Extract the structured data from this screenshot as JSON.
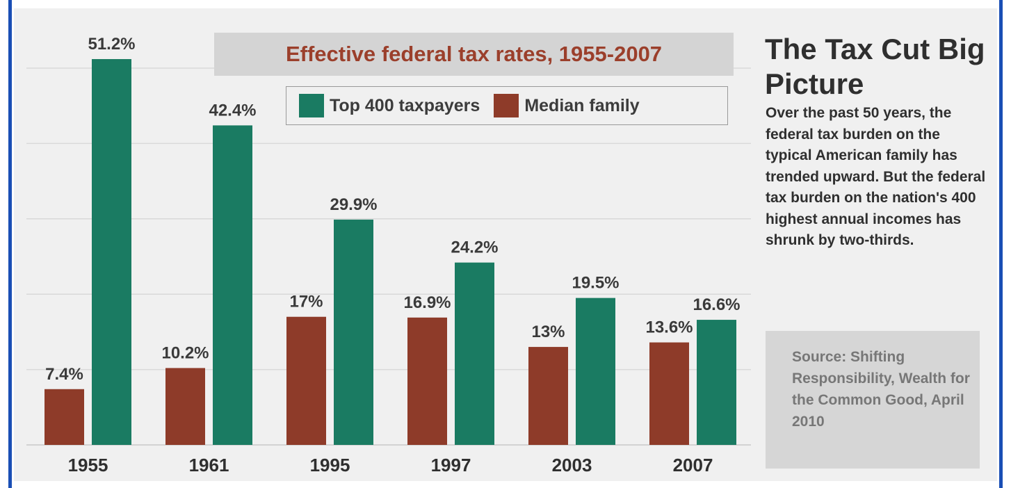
{
  "chart_data": {
    "type": "bar",
    "title": "Effective federal tax rates, 1955-2007",
    "categories": [
      "1955",
      "1961",
      "1995",
      "1997",
      "2003",
      "2007"
    ],
    "series": [
      {
        "name": "Median family",
        "color": "#8e3b29",
        "values": [
          7.4,
          10.2,
          17,
          16.9,
          13,
          13.6
        ],
        "labels": [
          "7.4%",
          "10.2%",
          "17%",
          "16.9%",
          "13%",
          "13.6%"
        ]
      },
      {
        "name": "Top 400 taxpayers",
        "color": "#1a7b62",
        "values": [
          51.2,
          42.4,
          29.9,
          24.2,
          19.5,
          16.6
        ],
        "labels": [
          "51.2%",
          "42.4%",
          "29.9%",
          "24.2%",
          "19.5%",
          "16.6%"
        ]
      }
    ],
    "ylim": [
      0,
      50
    ],
    "grid": true,
    "legend_order": [
      "Top 400 taxpayers",
      "Median family"
    ],
    "legend_position": "top"
  },
  "sidebar": {
    "title": "The Tax Cut Big Picture",
    "description": "Over the past 50 years, the federal tax burden on the typical American family has trended upward. But the federal tax burden on the nation's 400 highest annual incomes has shrunk by two-thirds.",
    "source": "Source: Shifting Responsibility, Wealth for the Common Good, April 2010"
  },
  "colors": {
    "frame": "#1a4fb5",
    "panel": "#f0f0f0",
    "title": "#9b3f2b"
  }
}
